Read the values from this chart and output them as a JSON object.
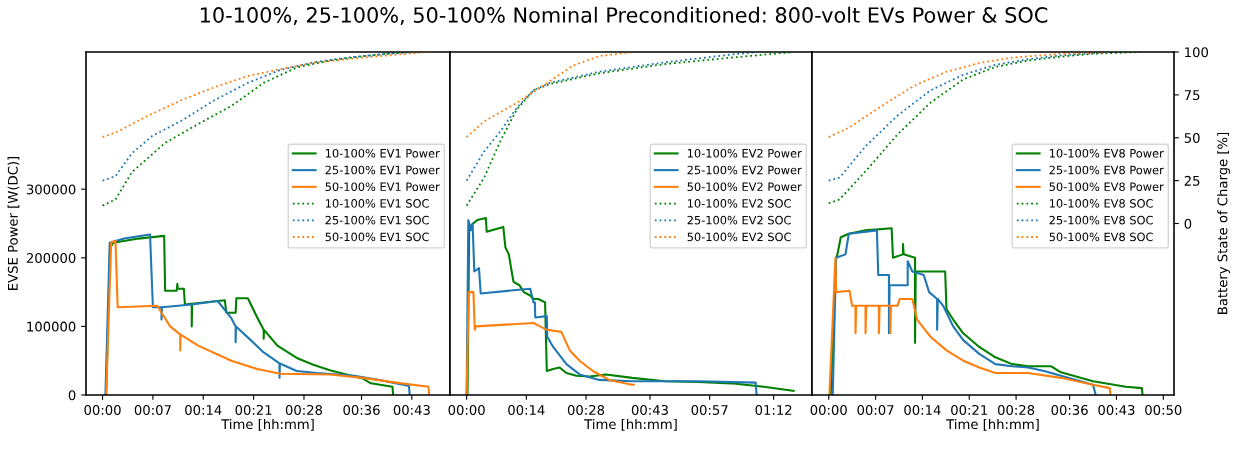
{
  "chart_data": [
    {
      "type": "line",
      "title": "10-100%, 25-100%, 50-100% Nominal Preconditioned: 800-volt EVs Power & SOC",
      "xlabel": "Time [hh:mm]",
      "ylabel": "EVSE Power [W(DC)]",
      "legend": "right",
      "tick_labels": [
        "x",
        "y"
      ],
      "xlim": [
        -2.3,
        48.3
      ],
      "xticks": [
        {
          "value": 0,
          "label": "00:00"
        },
        {
          "value": 7,
          "label": "00:07"
        },
        {
          "value": 14,
          "label": "00:14"
        },
        {
          "value": 21,
          "label": "00:21"
        },
        {
          "value": 28,
          "label": "00:28"
        },
        {
          "value": 36,
          "label": "00:36"
        },
        {
          "value": 43,
          "label": "00:43"
        }
      ],
      "ylim": [
        0,
        500000
      ],
      "yticks": [
        0,
        100000,
        200000,
        300000
      ],
      "y2lim": [
        -100,
        100
      ],
      "series": [
        {
          "name": "10-100% EV1 Power",
          "color": "#008000",
          "x": [
            0.3,
            0.5,
            1.05,
            1.5,
            5,
            8.56,
            8.7,
            10.3,
            10.4,
            10.45,
            11.3,
            11.45,
            12.4,
            12.4,
            12.45,
            17.0,
            17.2,
            18.5,
            18.6,
            20.2,
            21.5,
            22.4,
            22.4,
            22.45,
            24.3,
            27.0,
            29.3,
            31.6,
            33.9,
            36.2,
            37.3,
            40.3,
            40.4
          ],
          "values": [
            0,
            0,
            215000,
            222000,
            228000,
            232000,
            152000,
            152000,
            162000,
            155000,
            155000,
            132000,
            133000,
            100000,
            133000,
            138000,
            120000,
            120000,
            141000,
            141000,
            113000,
            95000,
            82000,
            95000,
            72000,
            54000,
            44000,
            36000,
            30000,
            24000,
            17000,
            12000,
            0
          ]
        },
        {
          "name": "25-100% EV1 Power",
          "color": "#1f77b4",
          "x": [
            0.4,
            1.0,
            3.0,
            6.6,
            7.0,
            8.2,
            8.2,
            8.25,
            12.4,
            16.0,
            17.9,
            18.5,
            18.5,
            18.55,
            20.6,
            22.4,
            24.6,
            24.6,
            24.65,
            27.0,
            29.8,
            35.0,
            38.5,
            42.6,
            42.7
          ],
          "values": [
            0,
            222000,
            228000,
            234000,
            128000,
            128000,
            110000,
            128000,
            132000,
            137000,
            112000,
            100000,
            77000,
            100000,
            80000,
            62000,
            46000,
            25000,
            46000,
            35000,
            32000,
            28000,
            22000,
            13000,
            0
          ]
        },
        {
          "name": "50-100% EV1 Power",
          "color": "#ff7f0e",
          "x": [
            0.5,
            1.2,
            1.8,
            2.1,
            7.6,
            8.2,
            9.4,
            10.8,
            10.8,
            10.85,
            13.3,
            17.9,
            21.5,
            24.7,
            31.6,
            36.2,
            40.8,
            45.3,
            45.4
          ],
          "values": [
            0,
            222000,
            225000,
            128000,
            130000,
            120000,
            100000,
            88000,
            65000,
            88000,
            72000,
            50000,
            38000,
            31000,
            30000,
            25000,
            18000,
            12000,
            0
          ]
        },
        {
          "name": "10-100% EV1 SOC",
          "color": "#008000",
          "axis": "y2",
          "line_style": "dotted",
          "x": [
            0,
            1.8,
            4.1,
            8.7,
            13.3,
            17.9,
            22.4,
            27.0,
            31.6,
            36.2,
            40.8,
            42.6
          ],
          "values": [
            10.4,
            14,
            30,
            47,
            58,
            68.5,
            82,
            91,
            95,
            97.6,
            99.5,
            100
          ]
        },
        {
          "name": "25-100% EV1 SOC",
          "color": "#1f77b4",
          "axis": "y2",
          "line_style": "dotted",
          "x": [
            0,
            1.8,
            4.1,
            6.9,
            11.0,
            15.6,
            20.2,
            24.7,
            29.3,
            33.9,
            38.5,
            43.1
          ],
          "values": [
            25,
            27.6,
            41,
            51,
            60,
            72,
            82,
            89.5,
            94,
            96.7,
            98.5,
            100
          ]
        },
        {
          "name": "50-100% EV1 SOC",
          "color": "#ff7f0e",
          "axis": "y2",
          "line_style": "dotted",
          "x": [
            0,
            1.8,
            6.4,
            11.0,
            15.6,
            20.2,
            24.7,
            29.3,
            33.9,
            38.5,
            45.3
          ],
          "values": [
            50.4,
            53,
            63,
            72,
            79.5,
            86,
            90,
            93.6,
            95.8,
            97.6,
            100
          ]
        }
      ]
    },
    {
      "type": "line",
      "xlabel": "Time [hh:mm]",
      "legend": "right",
      "tick_labels": "x",
      "xlim": [
        -3.9,
        81
      ],
      "xticks": [
        {
          "value": 0,
          "label": "00:00"
        },
        {
          "value": 14,
          "label": "00:14"
        },
        {
          "value": 28,
          "label": "00:28"
        },
        {
          "value": 43,
          "label": "00:43"
        },
        {
          "value": 57,
          "label": "00:57"
        },
        {
          "value": 72,
          "label": "01:12"
        }
      ],
      "ylim": [
        0,
        500000
      ],
      "y2lim": [
        -100,
        100
      ],
      "series": [
        {
          "name": "10-100% EV2 Power",
          "color": "#008000",
          "x": [
            0.2,
            0.6,
            2.5,
            4.5,
            4.7,
            8.6,
            9.1,
            9.9,
            10.7,
            11.0,
            12.4,
            13.4,
            14.9,
            15.7,
            16.8,
            18.4,
            18.8,
            20.3,
            21.8,
            23.4,
            25.7,
            28.8,
            32.7,
            38.8,
            46.6,
            54.3,
            62.0,
            69.7,
            76.7
          ],
          "values": [
            0,
            245000,
            255000,
            258000,
            238000,
            245000,
            215000,
            205000,
            175000,
            165000,
            160000,
            150000,
            145000,
            140000,
            140000,
            135000,
            35000,
            38000,
            40000,
            32000,
            28000,
            27000,
            30000,
            25000,
            20000,
            19000,
            17000,
            12000,
            6000
          ]
        },
        {
          "name": "25-100% EV2 Power",
          "color": "#1f77b4",
          "x": [
            0,
            0.4,
            1.0,
            1.4,
            1.8,
            2.9,
            3.3,
            14.9,
            15.7,
            16.0,
            16.1,
            18.8,
            18.9,
            20.3,
            23.4,
            26.5,
            31.1,
            38.8,
            54.3,
            67.8,
            68.0
          ],
          "values": [
            0,
            255000,
            240000,
            250000,
            180000,
            185000,
            148000,
            155000,
            135000,
            135000,
            113000,
            115000,
            85000,
            70000,
            45000,
            30000,
            22000,
            20000,
            20000,
            18000,
            0
          ]
        },
        {
          "name": "50-100% EV2 Power",
          "color": "#ff7f0e",
          "x": [
            0,
            0.5,
            1.6,
            1.9,
            2.2,
            15.7,
            17.2,
            18.8,
            22.2,
            24.2,
            26.5,
            29.6,
            33.4,
            38.8,
            39.2
          ],
          "values": [
            0,
            150000,
            150000,
            95000,
            100000,
            105000,
            100000,
            95000,
            92000,
            65000,
            50000,
            35000,
            22000,
            15000,
            15000
          ]
        },
        {
          "name": "10-100% EV2 SOC",
          "color": "#008000",
          "axis": "y2",
          "line_style": "dotted",
          "x": [
            0,
            4.1,
            8.0,
            11.8,
            15.7,
            19.5,
            31.1,
            46.6,
            62.0,
            76.7
          ],
          "values": [
            10.4,
            26.7,
            48.5,
            66.7,
            77.6,
            81.3,
            87.6,
            93,
            96.7,
            100
          ]
        },
        {
          "name": "25-100% EV2 SOC",
          "color": "#1f77b4",
          "axis": "y2",
          "line_style": "dotted",
          "x": [
            0,
            4.1,
            8.0,
            11.8,
            15.7,
            19.5,
            31.1,
            46.6,
            62.0,
            68.2
          ],
          "values": [
            25,
            42,
            54,
            67.6,
            77.6,
            82,
            88.5,
            94,
            98.5,
            100
          ]
        },
        {
          "name": "50-100% EV2 SOC",
          "color": "#ff7f0e",
          "axis": "y2",
          "line_style": "dotted",
          "x": [
            0,
            4.1,
            11.8,
            19.5,
            24.9,
            31.1,
            39.2
          ],
          "values": [
            50.4,
            59.5,
            70.4,
            83,
            92,
            97.6,
            100
          ]
        }
      ]
    },
    {
      "type": "line",
      "xlabel": "Time [hh:mm]",
      "y2label": "Battery State of Charge [%]",
      "legend": "right",
      "tick_labels": [
        "x",
        "y2"
      ],
      "xlim": [
        -2.5,
        51.6
      ],
      "xticks": [
        {
          "value": 0,
          "label": "00:00"
        },
        {
          "value": 7,
          "label": "00:07"
        },
        {
          "value": 14,
          "label": "00:14"
        },
        {
          "value": 21,
          "label": "00:21"
        },
        {
          "value": 28,
          "label": "00:28"
        },
        {
          "value": 36,
          "label": "00:36"
        },
        {
          "value": 43,
          "label": "00:43"
        },
        {
          "value": 50,
          "label": "00:50"
        }
      ],
      "ylim": [
        0,
        500000
      ],
      "y2lim": [
        -100,
        100
      ],
      "y2ticks": [
        0,
        25,
        50,
        75,
        100
      ],
      "series": [
        {
          "name": "10-100% EV8 Power",
          "color": "#008000",
          "x": [
            0.3,
            1.1,
            1.3,
            1.8,
            3.0,
            5.5,
            9.4,
            9.6,
            11.1,
            11.1,
            11.2,
            12.9,
            12.9,
            13.0,
            14.7,
            17.4,
            17.6,
            18.6,
            20.1,
            22.5,
            24.9,
            27.4,
            29.8,
            33.2,
            34.7,
            39.5,
            44.4,
            46.8,
            46.9
          ],
          "values": [
            0,
            200000,
            205000,
            230000,
            235000,
            240000,
            243000,
            200000,
            205000,
            220000,
            205000,
            200000,
            76000,
            180000,
            180000,
            180000,
            125000,
            110000,
            90000,
            70000,
            55000,
            45000,
            42000,
            42000,
            33000,
            20000,
            12000,
            10000,
            0
          ]
        },
        {
          "name": "25-100% EV8 Power",
          "color": "#1f77b4",
          "x": [
            0.6,
            1.1,
            2.5,
            3.0,
            7.2,
            7.4,
            9.0,
            9.0,
            9.1,
            11.8,
            11.8,
            12.5,
            14.2,
            15.0,
            16.2,
            16.2,
            16.3,
            17.1,
            18.6,
            20.1,
            22.5,
            24.9,
            27.4,
            29.8,
            32.2,
            34.7,
            39.5,
            39.9
          ],
          "values": [
            0,
            200000,
            205000,
            235000,
            240000,
            175000,
            175000,
            90000,
            160000,
            160000,
            195000,
            180000,
            175000,
            150000,
            140000,
            95000,
            140000,
            130000,
            100000,
            80000,
            60000,
            45000,
            42000,
            40000,
            35000,
            28000,
            15000,
            0
          ]
        },
        {
          "name": "50-100% EV8 Power",
          "color": "#ff7f0e",
          "x": [
            0.1,
            1.0,
            1.1,
            3.1,
            3.5,
            4.0,
            4.0,
            4.1,
            5.5,
            5.5,
            5.6,
            7.5,
            7.5,
            7.6,
            9.2,
            9.2,
            9.3,
            10.3,
            10.6,
            12.5,
            13.2,
            15.2,
            17.6,
            20.1,
            22.5,
            24.9,
            29.8,
            34.7,
            39.5,
            42.0,
            42.1
          ],
          "values": [
            0,
            200000,
            150000,
            152000,
            130000,
            130000,
            90000,
            130000,
            130000,
            90000,
            130000,
            130000,
            90000,
            130000,
            130000,
            90000,
            130000,
            130000,
            140000,
            140000,
            110000,
            85000,
            65000,
            50000,
            40000,
            32000,
            32000,
            25000,
            15000,
            10000,
            0
          ]
        },
        {
          "name": "10-100% EV8 SOC",
          "color": "#008000",
          "axis": "y2",
          "line_style": "dotted",
          "x": [
            0,
            1.6,
            5.5,
            10.3,
            15.2,
            20.1,
            24.9,
            29.8,
            34.7,
            39.5,
            46.8
          ],
          "values": [
            11.8,
            14,
            30.4,
            52,
            70.4,
            84,
            91.3,
            95,
            97.3,
            99,
            100
          ]
        },
        {
          "name": "25-100% EV8 SOC",
          "color": "#1f77b4",
          "axis": "y2",
          "line_style": "dotted",
          "x": [
            0,
            1.6,
            5.5,
            10.3,
            15.2,
            20.1,
            24.9,
            29.8,
            34.7,
            42.0
          ],
          "values": [
            25,
            26.7,
            45,
            63,
            77.6,
            86.7,
            92.5,
            95.8,
            98,
            100
          ]
        },
        {
          "name": "50-100% EV8 SOC",
          "color": "#ff7f0e",
          "axis": "y2",
          "line_style": "dotted",
          "x": [
            0,
            3.0,
            7.9,
            12.8,
            17.6,
            22.5,
            27.4,
            34.7,
            42.0
          ],
          "values": [
            50.4,
            55.8,
            68.5,
            80.4,
            88.5,
            93.6,
            96.7,
            99,
            100
          ]
        }
      ]
    }
  ]
}
